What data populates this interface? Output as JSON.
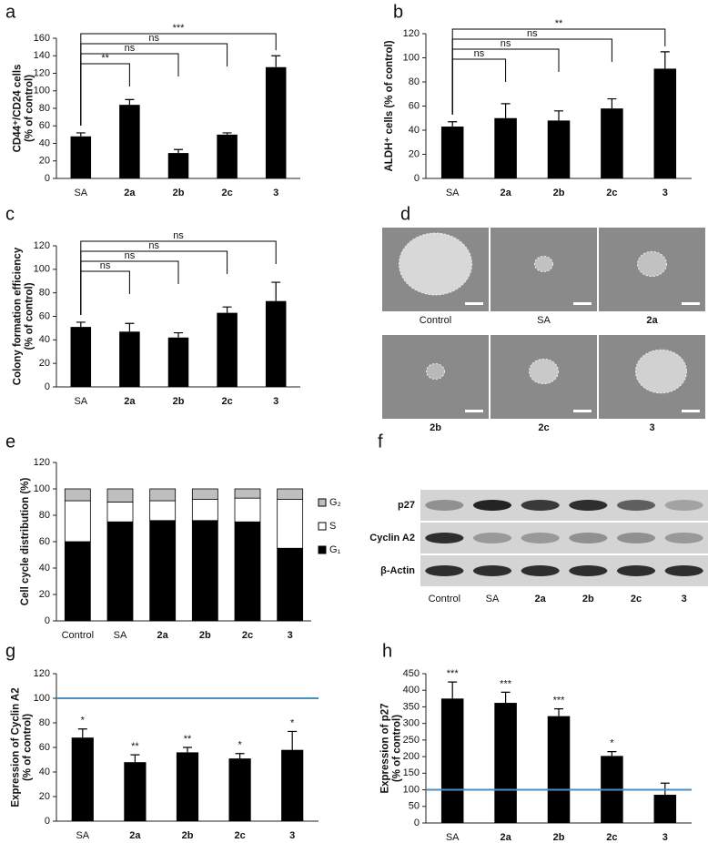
{
  "chart_data": [
    {
      "type": "bar",
      "panel": "a",
      "ylabel": [
        "CD44⁺/CD24 cells",
        "(% of control)"
      ],
      "categories": [
        "SA",
        "2a",
        "2b",
        "2c",
        "3"
      ],
      "values": [
        48,
        84,
        29,
        50,
        127
      ],
      "errors": [
        4,
        6,
        4,
        2,
        13
      ],
      "significance": [
        null,
        "**",
        "ns",
        "ns",
        "***"
      ],
      "color": "#000000",
      "ylim": [
        0,
        160
      ],
      "yticks": [
        0,
        20,
        40,
        60,
        80,
        100,
        120,
        140,
        160
      ]
    },
    {
      "type": "bar",
      "panel": "b",
      "ylabel": [
        "ALDH⁺ cells (% of control)"
      ],
      "categories": [
        "SA",
        "2a",
        "2b",
        "2c",
        "3"
      ],
      "values": [
        43,
        50,
        48,
        58,
        91
      ],
      "errors": [
        4,
        12,
        8,
        8,
        14
      ],
      "significance": [
        null,
        "ns",
        "ns",
        "ns",
        "**"
      ],
      "color": "#000000",
      "ylim": [
        0,
        120
      ],
      "yticks": [
        0,
        20,
        40,
        60,
        80,
        100,
        120
      ]
    },
    {
      "type": "bar",
      "panel": "c",
      "ylabel": [
        "Colony formation efficiency",
        "(% of control)"
      ],
      "categories": [
        "SA",
        "2a",
        "2b",
        "2c",
        "3"
      ],
      "values": [
        51,
        47,
        42,
        63,
        73
      ],
      "errors": [
        4,
        7,
        4,
        5,
        16
      ],
      "significance": [
        null,
        "ns",
        "ns",
        "ns",
        "ns"
      ],
      "color": "#000000",
      "ylim": [
        0,
        120
      ],
      "yticks": [
        0,
        20,
        40,
        60,
        80,
        100,
        120
      ]
    },
    {
      "type": "image-grid",
      "panel": "d",
      "images": [
        "Control",
        "SA",
        "2a",
        "2b",
        "2c",
        "3"
      ]
    },
    {
      "type": "stacked-bar",
      "panel": "e",
      "ylabel": [
        "Cell cycle distribution (%)"
      ],
      "categories": [
        "Control",
        "SA",
        "2a",
        "2b",
        "2c",
        "3"
      ],
      "series": [
        {
          "name": "G₁",
          "color": "#000000",
          "values": [
            60,
            75,
            76,
            76,
            75,
            55
          ]
        },
        {
          "name": "S",
          "color": "#ffffff",
          "values": [
            31,
            15,
            15,
            16,
            18,
            37
          ]
        },
        {
          "name": "G₂",
          "color": "#bfbfbf",
          "values": [
            9,
            10,
            9,
            8,
            7,
            8
          ]
        }
      ],
      "ylim": [
        0,
        120
      ],
      "yticks": [
        0,
        20,
        40,
        60,
        80,
        100,
        120
      ],
      "legend": "right"
    },
    {
      "type": "blot",
      "panel": "f",
      "rows": [
        "p27",
        "Cyclin A2",
        "β-Actin"
      ],
      "lanes": [
        "Control",
        "SA",
        "2a",
        "2b",
        "2c",
        "3"
      ]
    },
    {
      "type": "bar",
      "panel": "g",
      "ylabel": [
        "Expression of Cyclin A2",
        "(% of control)"
      ],
      "categories": [
        "SA",
        "2a",
        "2b",
        "2c",
        "3"
      ],
      "values": [
        68,
        48,
        56,
        51,
        58
      ],
      "errors": [
        7,
        6,
        4,
        4,
        15
      ],
      "annotations": [
        "*",
        "**",
        "**",
        "*",
        "*"
      ],
      "reference_line": 100,
      "reference_color": "#4a8ec2",
      "color": "#000000",
      "ylim": [
        0,
        120
      ],
      "yticks": [
        0,
        20,
        40,
        60,
        80,
        100,
        120
      ]
    },
    {
      "type": "bar",
      "panel": "h",
      "ylabel": [
        "Expression of p27",
        "(% of control)"
      ],
      "categories": [
        "SA",
        "2a",
        "2b",
        "2c",
        "3"
      ],
      "values": [
        375,
        362,
        322,
        202,
        85
      ],
      "errors": [
        50,
        32,
        22,
        13,
        35
      ],
      "annotations": [
        "***",
        "***",
        "***",
        "*",
        null
      ],
      "reference_line": 100,
      "reference_color": "#4a8ec2",
      "color": "#000000",
      "ylim": [
        0,
        450
      ],
      "yticks": [
        0,
        50,
        100,
        150,
        200,
        250,
        300,
        350,
        400,
        450
      ]
    }
  ]
}
